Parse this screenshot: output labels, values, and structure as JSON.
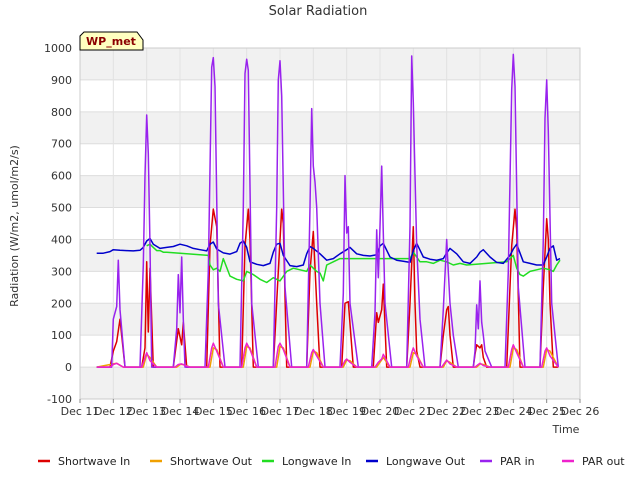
{
  "chart_data": {
    "type": "line",
    "title": "Solar Radiation",
    "xlabel": "Time",
    "ylabel": "Radiation (W/m2, umol/m2/s)",
    "badge": "WP_met",
    "xlim": [
      11,
      26
    ],
    "ylim": [
      -100,
      1000
    ],
    "x_unit": "day of December",
    "x_ticks": [
      {
        "x": 11,
        "label": "Dec 11"
      },
      {
        "x": 12,
        "label": "Dec 12"
      },
      {
        "x": 13,
        "label": "Dec 13"
      },
      {
        "x": 14,
        "label": "Dec 14"
      },
      {
        "x": 15,
        "label": "Dec 15"
      },
      {
        "x": 16,
        "label": "Dec 16"
      },
      {
        "x": 17,
        "label": "Dec 17"
      },
      {
        "x": 18,
        "label": "Dec 18"
      },
      {
        "x": 19,
        "label": "Dec 19"
      },
      {
        "x": 20,
        "label": "Dec 20"
      },
      {
        "x": 21,
        "label": "Dec 21"
      },
      {
        "x": 22,
        "label": "Dec 22"
      },
      {
        "x": 23,
        "label": "Dec 23"
      },
      {
        "x": 24,
        "label": "Dec 24"
      },
      {
        "x": 25,
        "label": "Dec 25"
      },
      {
        "x": 26,
        "label": "Dec 26"
      }
    ],
    "y_ticks": [
      -100,
      0,
      100,
      200,
      300,
      400,
      500,
      600,
      700,
      800,
      900,
      1000
    ],
    "grid": true,
    "legend_position": "bottom",
    "series": [
      {
        "name": "Shortwave In",
        "color": "#dd0000",
        "x": [
          11.5,
          11.9,
          12.0,
          12.1,
          12.2,
          12.35,
          12.4,
          12.85,
          12.95,
          13.0,
          13.05,
          13.1,
          13.2,
          13.3,
          13.35,
          13.8,
          13.95,
          14.05,
          14.1,
          14.2,
          14.3,
          14.35,
          14.8,
          14.9,
          15.0,
          15.1,
          15.2,
          15.35,
          15.85,
          15.95,
          16.05,
          16.1,
          16.2,
          16.35,
          16.8,
          16.95,
          17.05,
          17.1,
          17.2,
          17.35,
          17.8,
          17.9,
          18.0,
          18.1,
          18.2,
          18.35,
          18.85,
          18.95,
          19.05,
          19.2,
          19.35,
          19.8,
          19.9,
          19.95,
          20.05,
          20.1,
          20.2,
          20.35,
          20.8,
          20.9,
          21.0,
          21.05,
          21.1,
          21.2,
          21.35,
          21.8,
          21.9,
          22.0,
          22.05,
          22.1,
          22.2,
          22.35,
          22.8,
          22.85,
          22.9,
          23.0,
          23.05,
          23.1,
          23.2,
          23.3,
          23.35,
          23.8,
          23.95,
          24.05,
          24.1,
          24.2,
          24.35,
          24.8,
          24.9,
          25.0,
          25.05,
          25.1,
          25.2,
          25.35
        ],
        "y": [
          0,
          0,
          50,
          80,
          150,
          0,
          0,
          0,
          60,
          330,
          110,
          310,
          0,
          0,
          0,
          0,
          120,
          70,
          140,
          0,
          0,
          0,
          0,
          380,
          495,
          440,
          0,
          0,
          0,
          380,
          495,
          400,
          0,
          0,
          0,
          300,
          495,
          450,
          0,
          0,
          0,
          300,
          425,
          200,
          0,
          0,
          0,
          200,
          205,
          0,
          0,
          0,
          170,
          140,
          180,
          260,
          0,
          0,
          0,
          200,
          440,
          200,
          50,
          0,
          0,
          0,
          100,
          180,
          190,
          100,
          0,
          0,
          0,
          40,
          70,
          60,
          70,
          30,
          0,
          0,
          0,
          0,
          380,
          495,
          430,
          0,
          0,
          0,
          250,
          465,
          400,
          200,
          0,
          0
        ]
      },
      {
        "name": "Shortwave Out",
        "color": "#f0a000",
        "x": [
          11.5,
          12.0,
          12.1,
          12.3,
          12.9,
          13.0,
          13.1,
          13.3,
          13.9,
          14.0,
          14.1,
          14.3,
          14.9,
          15.0,
          15.1,
          15.3,
          15.9,
          16.0,
          16.1,
          16.3,
          16.9,
          17.0,
          17.1,
          17.3,
          17.9,
          18.0,
          18.1,
          18.3,
          18.9,
          19.0,
          19.1,
          19.3,
          19.9,
          20.0,
          20.1,
          20.3,
          20.9,
          21.0,
          21.1,
          21.3,
          21.9,
          22.0,
          22.1,
          22.3,
          22.9,
          23.0,
          23.1,
          23.3,
          23.9,
          24.0,
          24.1,
          24.3,
          24.9,
          25.0,
          25.1,
          25.35
        ],
        "y": [
          0,
          10,
          12,
          0,
          0,
          40,
          30,
          0,
          0,
          8,
          8,
          0,
          0,
          60,
          55,
          0,
          0,
          65,
          60,
          0,
          0,
          65,
          60,
          0,
          0,
          50,
          45,
          0,
          0,
          22,
          20,
          0,
          0,
          15,
          30,
          0,
          0,
          45,
          40,
          0,
          0,
          20,
          15,
          0,
          0,
          10,
          8,
          0,
          0,
          60,
          55,
          0,
          0,
          55,
          50,
          0
        ]
      },
      {
        "name": "Longwave In",
        "color": "#22dd22",
        "x": [
          13.0,
          13.1,
          13.2,
          13.3,
          13.4,
          13.5,
          13.6,
          14.85,
          14.9,
          15.0,
          15.1,
          15.2,
          15.3,
          15.5,
          15.7,
          15.9,
          16.0,
          16.2,
          16.4,
          16.6,
          16.8,
          17.0,
          17.2,
          17.4,
          17.6,
          17.8,
          17.9,
          18.0,
          18.1,
          18.2,
          18.3,
          18.4,
          18.6,
          18.8,
          20.9,
          21.0,
          21.2,
          21.4,
          21.6,
          21.8,
          22.0,
          22.2,
          22.4,
          22.6,
          23.8,
          23.9,
          24.0,
          24.1,
          24.2,
          24.3,
          24.5,
          24.7,
          24.9,
          25.1,
          25.2,
          25.3,
          25.4
        ],
        "y": [
          380,
          385,
          375,
          365,
          365,
          360,
          360,
          350,
          320,
          305,
          310,
          300,
          340,
          285,
          275,
          270,
          300,
          290,
          275,
          265,
          280,
          270,
          300,
          310,
          305,
          300,
          320,
          310,
          300,
          295,
          270,
          320,
          330,
          340,
          340,
          360,
          330,
          330,
          325,
          335,
          330,
          320,
          325,
          320,
          330,
          340,
          350,
          310,
          290,
          285,
          300,
          305,
          310,
          305,
          300,
          320,
          335
        ]
      },
      {
        "name": "Longwave Out",
        "color": "#0000cc",
        "x": [
          11.5,
          11.7,
          11.9,
          12.0,
          12.2,
          12.4,
          12.6,
          12.8,
          12.9,
          13.0,
          13.1,
          13.2,
          13.4,
          13.6,
          13.8,
          14.0,
          14.2,
          14.4,
          14.6,
          14.8,
          14.9,
          15.0,
          15.1,
          15.3,
          15.5,
          15.7,
          15.8,
          15.9,
          16.0,
          16.1,
          16.3,
          16.5,
          16.7,
          16.8,
          16.9,
          17.0,
          17.1,
          17.3,
          17.5,
          17.7,
          17.8,
          17.9,
          18.0,
          18.2,
          18.4,
          18.6,
          18.8,
          19.0,
          19.1,
          19.3,
          19.5,
          19.7,
          19.9,
          20.0,
          20.1,
          20.3,
          20.5,
          20.7,
          20.9,
          21.0,
          21.1,
          21.3,
          21.5,
          21.7,
          21.9,
          22.0,
          22.1,
          22.3,
          22.5,
          22.7,
          22.9,
          23.0,
          23.1,
          23.3,
          23.5,
          23.7,
          23.9,
          24.0,
          24.1,
          24.3,
          24.5,
          24.7,
          24.9,
          25.0,
          25.1,
          25.2,
          25.3,
          25.4
        ],
        "y": [
          357,
          357,
          362,
          368,
          366,
          365,
          364,
          366,
          375,
          395,
          403,
          385,
          372,
          375,
          378,
          385,
          380,
          372,
          368,
          364,
          385,
          392,
          370,
          358,
          354,
          362,
          388,
          395,
          375,
          330,
          322,
          318,
          325,
          360,
          385,
          388,
          350,
          318,
          315,
          320,
          355,
          378,
          372,
          355,
          335,
          340,
          355,
          368,
          375,
          355,
          350,
          348,
          352,
          380,
          388,
          345,
          335,
          332,
          328,
          365,
          388,
          345,
          338,
          335,
          340,
          358,
          372,
          355,
          330,
          325,
          345,
          360,
          368,
          345,
          328,
          325,
          350,
          370,
          385,
          330,
          325,
          320,
          320,
          345,
          372,
          380,
          335,
          340
        ]
      },
      {
        "name": "PAR in",
        "color": "#9922ee",
        "x": [
          11.5,
          11.95,
          12.0,
          12.1,
          12.15,
          12.2,
          12.35,
          12.8,
          12.9,
          12.95,
          13.0,
          13.05,
          13.1,
          13.15,
          13.35,
          13.8,
          13.9,
          13.95,
          14.0,
          14.05,
          14.1,
          14.15,
          14.35,
          14.75,
          14.85,
          14.95,
          15.0,
          15.05,
          15.15,
          15.35,
          15.8,
          15.9,
          15.95,
          16.0,
          16.05,
          16.15,
          16.35,
          16.8,
          16.9,
          16.95,
          17.0,
          17.05,
          17.15,
          17.35,
          17.8,
          17.9,
          17.95,
          18.0,
          18.05,
          18.1,
          18.2,
          18.35,
          18.8,
          18.9,
          18.95,
          19.0,
          19.05,
          19.1,
          19.35,
          19.75,
          19.85,
          19.9,
          19.95,
          20.0,
          20.05,
          20.1,
          20.15,
          20.35,
          20.8,
          20.9,
          20.95,
          21.0,
          21.05,
          21.1,
          21.2,
          21.35,
          21.8,
          21.9,
          22.0,
          22.05,
          22.1,
          22.2,
          22.35,
          22.8,
          22.85,
          22.9,
          22.95,
          23.0,
          23.05,
          23.1,
          23.15,
          23.35,
          23.75,
          23.85,
          23.95,
          24.0,
          24.05,
          24.15,
          24.35,
          24.8,
          24.9,
          24.95,
          25.0,
          25.05,
          25.15,
          25.35
        ],
        "y": [
          0,
          0,
          150,
          190,
          335,
          180,
          0,
          0,
          320,
          600,
          790,
          670,
          380,
          0,
          0,
          0,
          120,
          290,
          170,
          345,
          150,
          0,
          0,
          0,
          300,
          940,
          970,
          880,
          200,
          0,
          0,
          500,
          920,
          965,
          930,
          200,
          0,
          0,
          500,
          900,
          960,
          850,
          250,
          0,
          0,
          500,
          810,
          630,
          580,
          500,
          200,
          0,
          0,
          230,
          600,
          420,
          440,
          200,
          0,
          0,
          170,
          430,
          280,
          440,
          630,
          420,
          200,
          0,
          0,
          440,
          975,
          830,
          600,
          380,
          150,
          0,
          0,
          180,
          400,
          300,
          200,
          100,
          0,
          0,
          50,
          195,
          120,
          270,
          140,
          100,
          50,
          0,
          0,
          300,
          870,
          980,
          880,
          250,
          0,
          0,
          400,
          780,
          900,
          740,
          200,
          0
        ]
      },
      {
        "name": "PAR out",
        "color": "#ee22cc",
        "x": [
          11.5,
          11.9,
          12.0,
          12.1,
          12.3,
          12.85,
          12.95,
          13.0,
          13.1,
          13.3,
          13.85,
          13.95,
          14.05,
          14.15,
          14.3,
          14.85,
          14.95,
          15.0,
          15.1,
          15.3,
          15.85,
          15.95,
          16.0,
          16.1,
          16.3,
          16.85,
          16.95,
          17.0,
          17.1,
          17.3,
          17.85,
          17.95,
          18.0,
          18.1,
          18.3,
          18.85,
          18.95,
          19.0,
          19.1,
          19.3,
          19.85,
          19.95,
          20.05,
          20.1,
          20.3,
          20.85,
          20.95,
          21.0,
          21.1,
          21.3,
          21.85,
          21.95,
          22.0,
          22.1,
          22.3,
          22.85,
          22.95,
          23.0,
          23.1,
          23.3,
          23.85,
          23.95,
          24.0,
          24.1,
          24.3,
          24.85,
          24.95,
          25.0,
          25.1,
          25.35
        ],
        "y": [
          0,
          0,
          8,
          12,
          0,
          0,
          30,
          45,
          20,
          0,
          0,
          8,
          10,
          5,
          0,
          0,
          60,
          75,
          50,
          0,
          0,
          60,
          75,
          55,
          0,
          0,
          65,
          75,
          55,
          0,
          0,
          45,
          55,
          35,
          0,
          0,
          20,
          25,
          15,
          0,
          0,
          15,
          25,
          40,
          0,
          0,
          45,
          60,
          35,
          0,
          0,
          15,
          22,
          10,
          0,
          0,
          8,
          12,
          5,
          0,
          0,
          55,
          70,
          45,
          0,
          0,
          50,
          60,
          35,
          0
        ]
      }
    ]
  }
}
